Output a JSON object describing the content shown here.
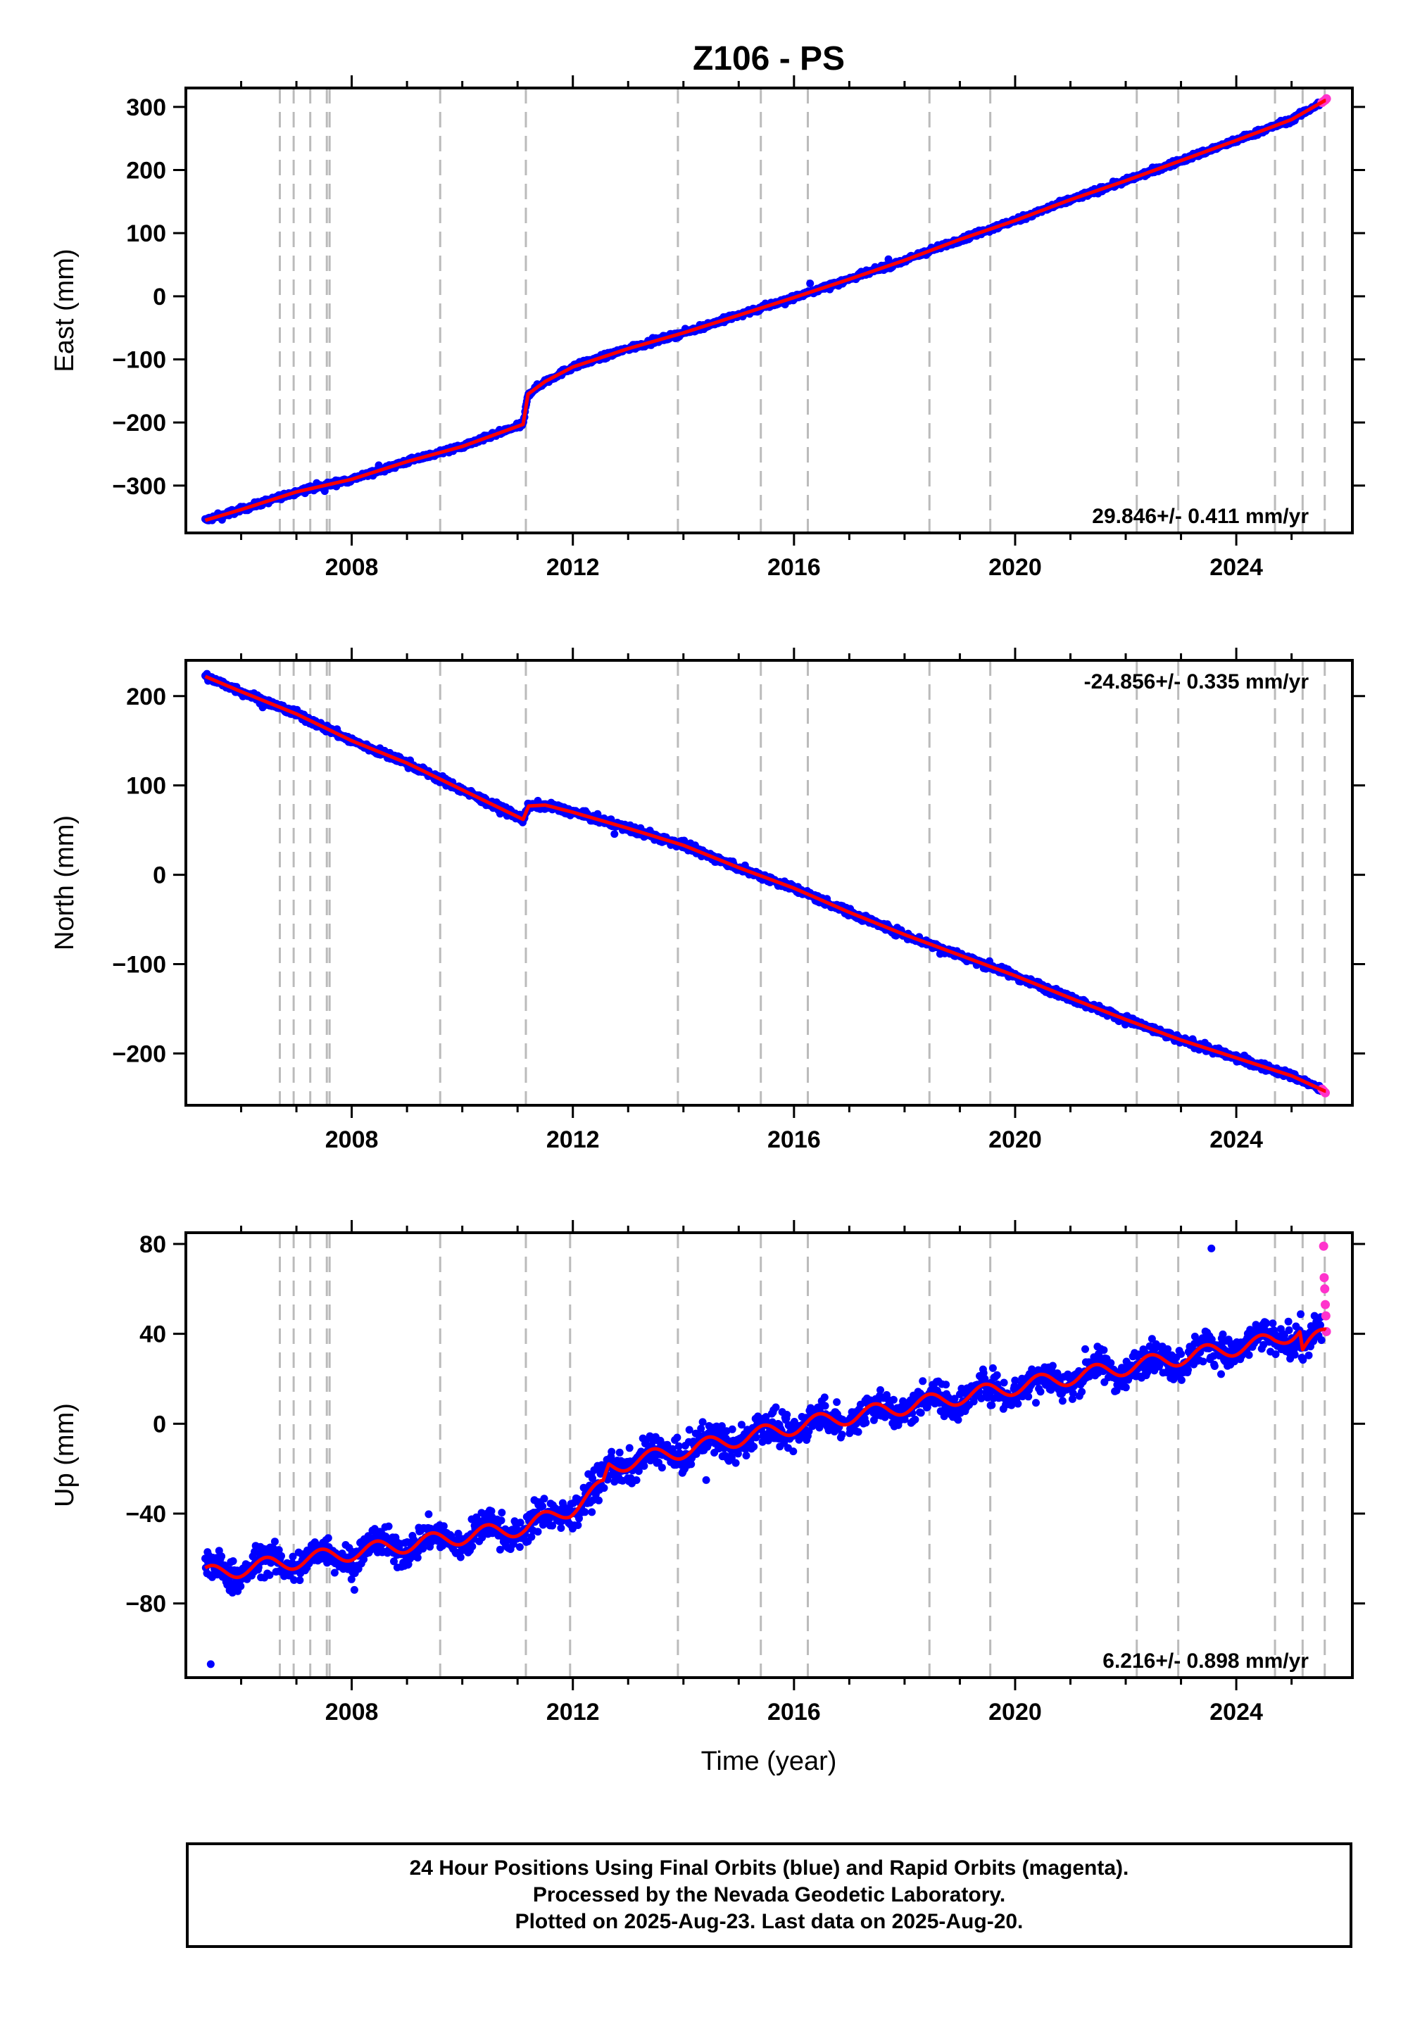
{
  "title": "Z106 - PS",
  "xlabel": "Time (year)",
  "colors": {
    "final": "#0000ff",
    "rapid": "#ff33cc",
    "model": "#ff0000",
    "event_line": "#bbbbbb"
  },
  "footer": [
    "24 Hour Positions Using Final Orbits (blue) and Rapid Orbits (magenta).",
    "Processed by the Nevada Geodetic Laboratory.",
    "Plotted on 2025-Aug-23. Last data on 2025-Aug-20."
  ],
  "chart_data": [
    {
      "type": "scatter",
      "component": "east",
      "ylabel": "East (mm)",
      "rate_label": "29.846+/- 0.411 mm/yr",
      "rate_position": "bottom-right",
      "xlim": [
        2005.0,
        2026.1
      ],
      "ylim": [
        -375,
        330
      ],
      "x_ticks": [
        2008,
        2012,
        2016,
        2020,
        2024
      ],
      "y_ticks": [
        -300,
        -200,
        -100,
        0,
        100,
        200,
        300
      ],
      "event_lines": [
        2006.7,
        2006.95,
        2007.25,
        2007.55,
        2007.6,
        2009.6,
        2011.15,
        2013.9,
        2015.4,
        2016.25,
        2018.45,
        2019.55,
        2022.2,
        2022.95,
        2024.7,
        2025.2,
        2025.6
      ],
      "model": {
        "x": [
          2005.35,
          2006.0,
          2007.0,
          2008.0,
          2009.0,
          2010.0,
          2011.1,
          2011.19,
          2011.5,
          2012.0,
          2013.0,
          2014.0,
          2015.0,
          2016.0,
          2017.0,
          2018.0,
          2019.0,
          2020.0,
          2021.0,
          2022.0,
          2023.0,
          2024.0,
          2025.0,
          2025.6
        ],
        "y": [
          -355,
          -338,
          -310,
          -290,
          -262,
          -238,
          -203,
          -155,
          -135,
          -112,
          -83,
          -58,
          -30,
          -2,
          27,
          57,
          90,
          120,
          153,
          183,
          215,
          247,
          280,
          310
        ]
      },
      "final_orbits_scatter_mm": 4,
      "rapid_orbits": {
        "x": [
          2025.55,
          2025.58,
          2025.61,
          2025.63
        ],
        "y": [
          307,
          309,
          311,
          313
        ]
      }
    },
    {
      "type": "scatter",
      "component": "north",
      "ylabel": "North (mm)",
      "rate_label": "-24.856+/- 0.335 mm/yr",
      "rate_position": "top-right",
      "xlim": [
        2005.0,
        2026.1
      ],
      "ylim": [
        -258,
        240
      ],
      "x_ticks": [
        2008,
        2012,
        2016,
        2020,
        2024
      ],
      "y_ticks": [
        -200,
        -100,
        0,
        100,
        200
      ],
      "event_lines": [
        2006.7,
        2006.95,
        2007.25,
        2007.55,
        2007.6,
        2009.6,
        2011.15,
        2013.9,
        2015.4,
        2016.25,
        2018.45,
        2019.55,
        2022.2,
        2022.95,
        2024.7,
        2025.2,
        2025.6
      ],
      "model": {
        "x": [
          2005.35,
          2006.0,
          2007.0,
          2008.0,
          2009.0,
          2010.0,
          2011.1,
          2011.2,
          2011.5,
          2012.0,
          2013.0,
          2014.0,
          2015.0,
          2016.0,
          2017.0,
          2018.0,
          2019.0,
          2020.0,
          2021.0,
          2022.0,
          2023.0,
          2024.0,
          2025.0,
          2025.6
        ],
        "y": [
          222,
          205,
          180,
          150,
          125,
          95,
          62,
          77,
          78,
          70,
          52,
          33,
          8,
          -15,
          -42,
          -67,
          -90,
          -113,
          -138,
          -162,
          -185,
          -205,
          -225,
          -242
        ]
      },
      "final_orbits_scatter_mm": 4,
      "rapid_orbits": {
        "x": [
          2025.55,
          2025.58,
          2025.61
        ],
        "y": [
          -240,
          -242,
          -244
        ]
      }
    },
    {
      "type": "scatter",
      "component": "up",
      "ylabel": "Up (mm)",
      "rate_label": "6.216+/- 0.898 mm/yr",
      "rate_position": "bottom-right",
      "xlim": [
        2005.0,
        2026.1
      ],
      "ylim": [
        -113,
        85
      ],
      "x_ticks": [
        2008,
        2012,
        2016,
        2020,
        2024
      ],
      "y_ticks": [
        -80,
        -40,
        0,
        40,
        80
      ],
      "event_lines": [
        2006.7,
        2006.95,
        2007.25,
        2007.55,
        2007.6,
        2009.6,
        2011.15,
        2011.95,
        2013.9,
        2015.4,
        2016.25,
        2018.45,
        2019.55,
        2022.2,
        2022.95,
        2024.7,
        2025.2,
        2025.6
      ],
      "model": {
        "trend": [
          [
            2005.35,
            -67
          ],
          [
            2011.15,
            -46
          ],
          [
            2011.95,
            -38
          ],
          [
            2012.55,
            -28
          ],
          [
            2012.65,
            -19
          ],
          [
            2016.25,
            0
          ],
          [
            2024.7,
            37
          ],
          [
            2025.15,
            42
          ],
          [
            2025.2,
            33
          ],
          [
            2025.6,
            40
          ]
        ],
        "seasonal_amplitude_mm": 3.5,
        "seasonal_peak_phase": 0.45
      },
      "final_orbits_scatter_mm": 7,
      "rapid_orbits": {
        "x": [
          2025.58,
          2025.59,
          2025.6,
          2025.61,
          2025.62,
          2025.63
        ],
        "y": [
          79,
          65,
          60,
          53,
          48,
          41
        ]
      }
    }
  ]
}
